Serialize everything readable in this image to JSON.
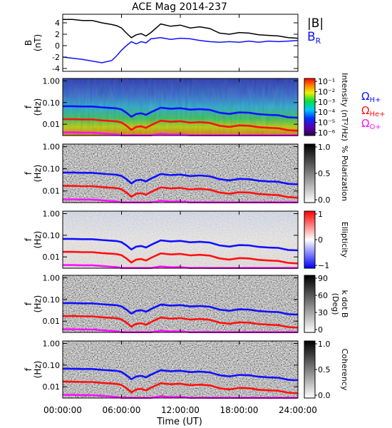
{
  "title": "ACE Mag 2014-237",
  "xlabel": "Time (UT)",
  "x_ticks": [
    "00:00:00",
    "06:00:00",
    "12:00:00",
    "18:00:00",
    "24:00:00"
  ],
  "x_range_hours": [
    0,
    24
  ],
  "colors": {
    "B_total": "#000000",
    "B_R": "#1010ff",
    "H_plus": "#1010ff",
    "He_plus": "#ff1010",
    "O_plus": "#ff10ff"
  },
  "legends": {
    "B_total": "|B|",
    "B_R": "B",
    "B_R_sub": "R",
    "omega_symbol": "Ω",
    "H_sub": "H+",
    "He_sub": "He+",
    "O_sub": "O+"
  },
  "chart_data": [
    {
      "type": "line",
      "ylabel": "B",
      "yunit": "(nT)",
      "ylim": [
        -4.5,
        5.5
      ],
      "yticks": [
        "4",
        "2",
        "0",
        "-2",
        "-4"
      ],
      "ytick_values": [
        4,
        2,
        0,
        -2,
        -4
      ],
      "x": [
        0,
        1,
        2,
        3,
        4,
        5,
        5.5,
        6,
        6.5,
        7,
        7.5,
        8,
        8.5,
        9,
        10,
        11,
        12,
        13,
        14,
        15,
        16,
        17,
        18,
        19,
        20,
        21,
        22,
        23,
        24
      ],
      "series": [
        {
          "name": "|B|",
          "values": [
            4.6,
            4.6,
            4.4,
            4.4,
            4.0,
            3.7,
            3.5,
            3.1,
            2.2,
            1.4,
            1.9,
            2.1,
            1.7,
            2.3,
            3.8,
            3.4,
            3.6,
            3.1,
            3.3,
            3.0,
            2.2,
            2.0,
            2.3,
            2.2,
            1.9,
            1.8,
            1.7,
            1.4,
            1.3
          ]
        },
        {
          "name": "B R",
          "values": [
            -2.0,
            -2.2,
            -2.4,
            -2.7,
            -3.0,
            -2.6,
            -1.8,
            -0.8,
            0.0,
            0.7,
            0.3,
            0.7,
            0.5,
            1.2,
            1.4,
            1.1,
            1.3,
            1.2,
            0.9,
            0.7,
            0.6,
            0.7,
            0.6,
            0.8,
            0.6,
            0.8,
            0.7,
            0.8,
            0.9
          ]
        }
      ]
    },
    {
      "type": "heatmap",
      "ylabel": "f",
      "yunit": "(Hz)",
      "yscale": "log",
      "ylim": [
        0.003,
        1.3
      ],
      "yticks": [
        "1.00",
        "0.10",
        "0.01"
      ],
      "ytick_values": [
        1,
        0.1,
        0.01
      ],
      "colorbar_label": "Intensity (nT²/Hz)",
      "colorbar_ticks": [
        "10⁻¹",
        "10⁻²",
        "10⁻³",
        "10⁻⁴",
        "10⁻⁵",
        "10⁻⁶"
      ],
      "colormap": "rainbow"
    },
    {
      "type": "heatmap",
      "ylabel": "f",
      "yunit": "(Hz)",
      "yscale": "log",
      "ylim": [
        0.003,
        1.3
      ],
      "yticks": [
        "1.00",
        "0.10",
        "0.01"
      ],
      "ytick_values": [
        1,
        0.1,
        0.01
      ],
      "colorbar_label": "% Polarization",
      "colorbar_ticks": [
        "1.0",
        "0.5",
        "0.0"
      ],
      "colormap": "gray"
    },
    {
      "type": "heatmap",
      "ylabel": "f",
      "yunit": "(Hz)",
      "yscale": "log",
      "ylim": [
        0.003,
        1.3
      ],
      "yticks": [
        "1.00",
        "0.10",
        "0.01"
      ],
      "ytick_values": [
        1,
        0.1,
        0.01
      ],
      "colorbar_label": "Ellipticity",
      "colorbar_ticks": [
        "1",
        "0",
        "−1"
      ],
      "colormap": "red-white-blue"
    },
    {
      "type": "heatmap",
      "ylabel": "f",
      "yunit": "(Hz)",
      "yscale": "log",
      "ylim": [
        0.003,
        1.3
      ],
      "yticks": [
        "1.00",
        "0.10",
        "0.01"
      ],
      "ytick_values": [
        1,
        0.1,
        0.01
      ],
      "colorbar_label": "k dot B",
      "colorbar_label2": "(Deg)",
      "colorbar_ticks": [
        "90",
        "60",
        "30",
        "0"
      ],
      "colormap": "gray"
    },
    {
      "type": "heatmap",
      "ylabel": "f",
      "yunit": "(Hz)",
      "yscale": "log",
      "ylim": [
        0.003,
        1.3
      ],
      "yticks": [
        "1.00",
        "0.10",
        "0.01"
      ],
      "ytick_values": [
        1,
        0.1,
        0.01
      ],
      "colorbar_label": "Coherency",
      "colorbar_ticks": [
        "1.0",
        "0.5",
        "0.0"
      ],
      "colormap": "gray"
    }
  ],
  "gyrofrequency_lines": {
    "x": [
      0,
      1,
      2,
      3,
      4,
      5,
      5.5,
      6,
      6.5,
      7,
      7.5,
      8,
      8.5,
      9,
      10,
      11,
      12,
      13,
      14,
      15,
      16,
      17,
      18,
      19,
      20,
      21,
      22,
      23,
      24
    ],
    "H_plus": [
      0.068,
      0.068,
      0.066,
      0.066,
      0.06,
      0.056,
      0.054,
      0.048,
      0.034,
      0.022,
      0.03,
      0.032,
      0.027,
      0.036,
      0.058,
      0.052,
      0.055,
      0.047,
      0.05,
      0.046,
      0.034,
      0.03,
      0.035,
      0.034,
      0.029,
      0.027,
      0.026,
      0.021,
      0.02
    ],
    "He_plus": [
      0.017,
      0.017,
      0.0165,
      0.0165,
      0.015,
      0.014,
      0.0135,
      0.012,
      0.0085,
      0.0055,
      0.0075,
      0.008,
      0.0068,
      0.009,
      0.0145,
      0.013,
      0.0138,
      0.0118,
      0.0125,
      0.0115,
      0.0085,
      0.0075,
      0.0088,
      0.0085,
      0.0073,
      0.0068,
      0.0065,
      0.0053,
      0.005
    ],
    "O_plus": [
      0.0042,
      0.0042,
      0.0041,
      0.0041,
      0.0038,
      0.0035,
      0.0034,
      0.003,
      0.003,
      0.003,
      0.003,
      0.003,
      0.003,
      0.003,
      0.0036,
      0.0033,
      0.0034,
      0.003,
      0.0031,
      0.003,
      0.003,
      0.003,
      0.003,
      0.003,
      0.003,
      0.003,
      0.003,
      0.003,
      0.003
    ]
  }
}
